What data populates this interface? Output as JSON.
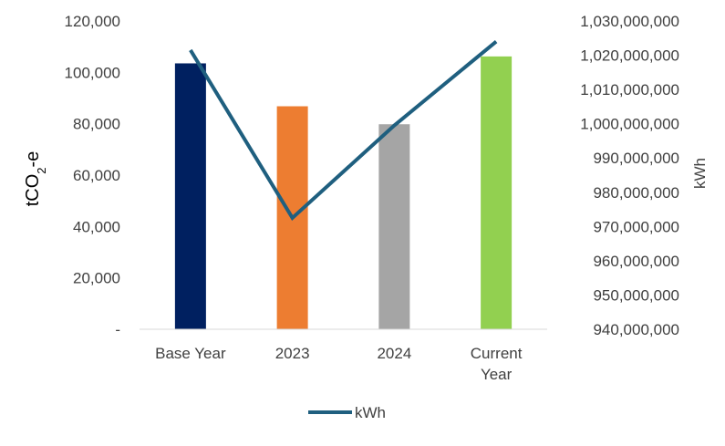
{
  "chart_data": {
    "type": "bar",
    "categories": [
      "Base Year",
      "2023",
      "2024",
      "Current Year"
    ],
    "category_labels": [
      [
        "Base Year"
      ],
      [
        "2023"
      ],
      [
        "2024"
      ],
      [
        "Current",
        "Year"
      ]
    ],
    "bar_values": [
      103500,
      86800,
      79800,
      106200
    ],
    "bar_colors": [
      "#002060",
      "#ED7D31",
      "#A5A5A5",
      "#92D050"
    ],
    "line_series": {
      "name": "kWh",
      "values": [
        1021500000,
        972500000,
        999500000,
        1024000000
      ],
      "color": "#1F5F7F"
    },
    "y_left": {
      "label_main": "tCO",
      "label_sub": "2",
      "label_suffix": "-e",
      "min": 0,
      "max": 120000,
      "ticks": [
        0,
        20000,
        40000,
        60000,
        80000,
        100000,
        120000
      ],
      "tick_labels": [
        "-",
        "20,000",
        "40,000",
        "60,000",
        "80,000",
        "100,000",
        "120,000"
      ]
    },
    "y_right": {
      "label": "kWh",
      "min": 940000000,
      "max": 1030000000,
      "ticks": [
        940000000,
        950000000,
        960000000,
        970000000,
        980000000,
        990000000,
        1000000000,
        1010000000,
        1020000000,
        1030000000
      ],
      "tick_labels": [
        "940,000,000",
        "950,000,000",
        "960,000,000",
        "970,000,000",
        "980,000,000",
        "990,000,000",
        "1,000,000,000",
        "1,010,000,000",
        "1,020,000,000",
        "1,030,000,000"
      ]
    },
    "grid": false,
    "legend": {
      "position": "bottom",
      "entries": [
        "kWh"
      ]
    },
    "axis_color": "#D9D9D9"
  }
}
